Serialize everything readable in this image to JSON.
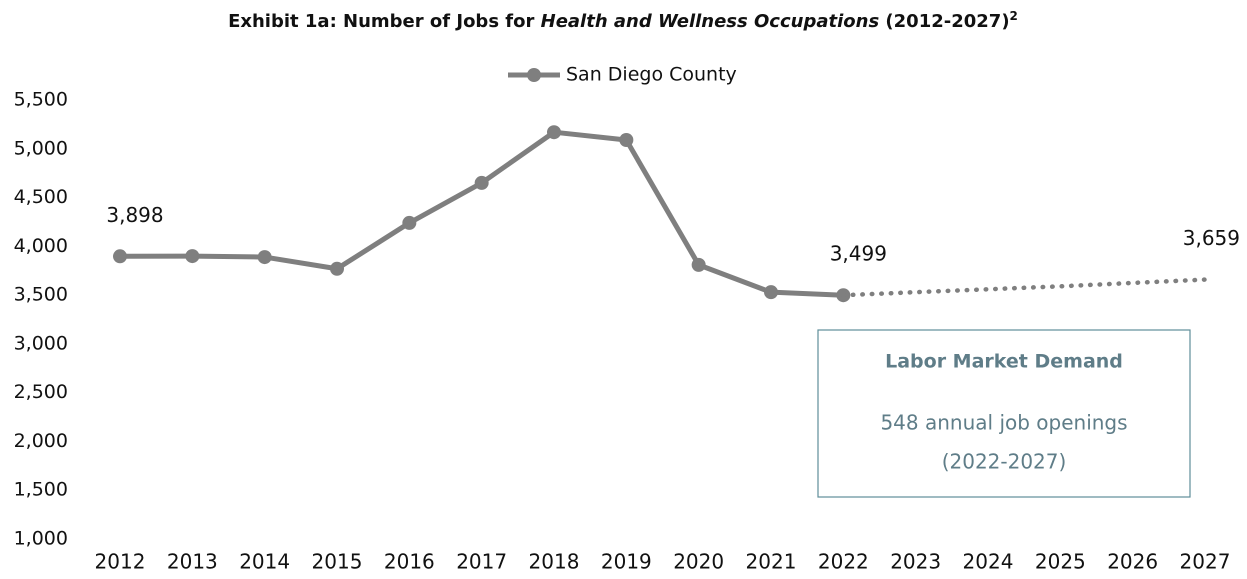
{
  "chart_data": {
    "type": "line",
    "title": [
      "Exhibit 1a: Number of Jobs for ",
      "Health and Wellness Occupations",
      " (2012-2027)"
    ],
    "title_note": "2",
    "categories": [
      "2012",
      "2013",
      "2014",
      "2015",
      "2016",
      "2017",
      "2018",
      "2019",
      "2020",
      "2021",
      "2022",
      "2023",
      "2024",
      "2025",
      "2026",
      "2027"
    ],
    "series": [
      {
        "name": "San Diego County",
        "color": "#7f7f7f",
        "style": "solid",
        "values": [
          3898,
          3900,
          3890,
          3770,
          4240,
          4650,
          5170,
          5090,
          3810,
          3530,
          3499,
          null,
          null,
          null,
          null,
          null
        ],
        "value_labels": [
          "3,898",
          null,
          null,
          null,
          null,
          null,
          null,
          null,
          null,
          null,
          "3,499",
          null,
          null,
          null,
          null,
          null
        ]
      },
      {
        "color": "#7f7f7f",
        "style": "dotted",
        "values": [
          null,
          null,
          null,
          null,
          null,
          null,
          null,
          null,
          null,
          null,
          3499,
          3530,
          3560,
          3590,
          3625,
          3659
        ],
        "value_labels": [
          null,
          null,
          null,
          null,
          null,
          null,
          null,
          null,
          null,
          null,
          null,
          null,
          null,
          null,
          null,
          "3,659"
        ]
      }
    ],
    "ylim": [
      1000,
      5500
    ],
    "yticks": [
      {
        "value": 1000,
        "label": "1,000"
      },
      {
        "value": 1500,
        "label": "1,500"
      },
      {
        "value": 2000,
        "label": "2,000"
      },
      {
        "value": 2500,
        "label": "2,500"
      },
      {
        "value": 3000,
        "label": "3,000"
      },
      {
        "value": 3500,
        "label": "3,500"
      },
      {
        "value": 4000,
        "label": "4,000"
      },
      {
        "value": 4500,
        "label": "4,500"
      },
      {
        "value": 5000,
        "label": "5,000"
      },
      {
        "value": 5500,
        "label": "5,500"
      }
    ],
    "legend": "top",
    "annotation": {
      "heading": "Labor Market Demand",
      "lines": [
        "548 annual job openings",
        "(2022-2027)"
      ]
    }
  }
}
